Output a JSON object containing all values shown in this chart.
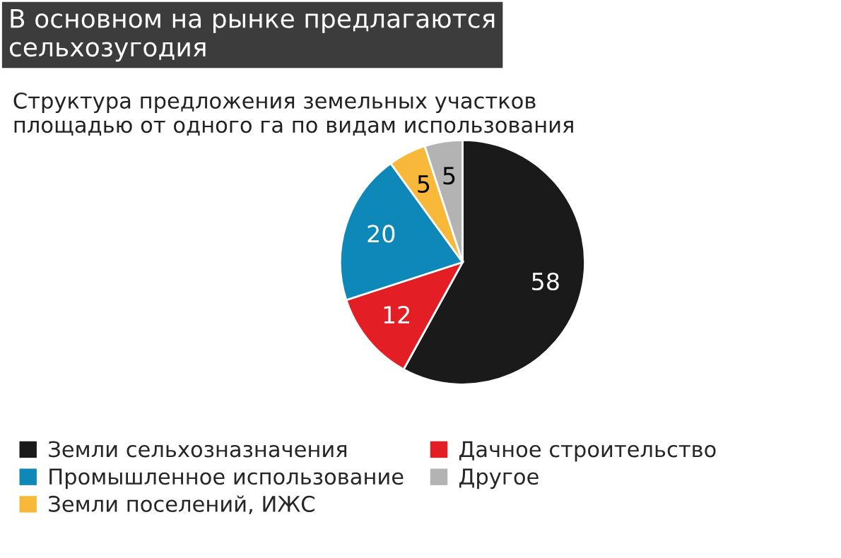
{
  "chart_data": {
    "type": "pie",
    "title": "В основном на рынке предлагаются\nсельхозугодия",
    "subtitle": "Структура предложения земельных участков\nплощадью от одного га по видам использования",
    "categories": [
      "Земли сельхозназначения",
      "Дачное строительство",
      "Промышленное использование",
      "Земли поселений, ИЖС",
      "Другое"
    ],
    "values": [
      58,
      12,
      20,
      5,
      5
    ],
    "colors": [
      "#1a1a1a",
      "#e31e24",
      "#0e88b8",
      "#f8b93a",
      "#b3b3b3"
    ],
    "data_labels": true,
    "legend": "bottom"
  }
}
